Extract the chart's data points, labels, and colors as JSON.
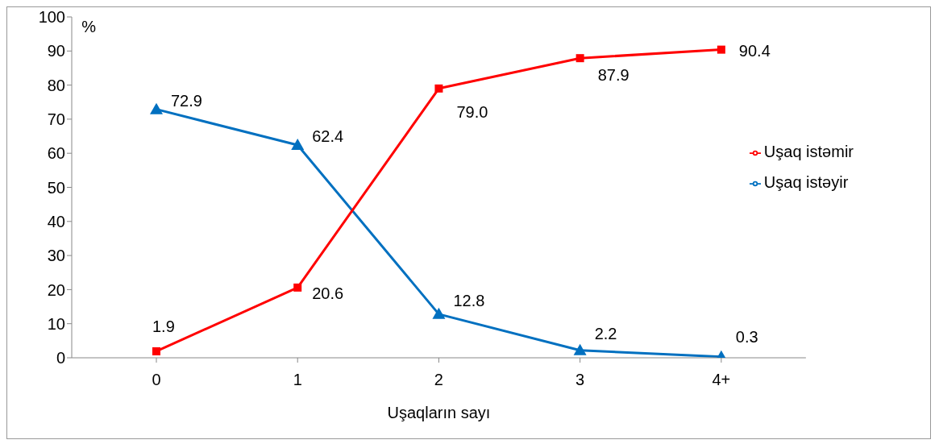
{
  "chart_data": {
    "type": "line",
    "xlabel": "Uşaqların sayı",
    "ylabel": "%",
    "categories": [
      "0",
      "1",
      "2",
      "3",
      "4+"
    ],
    "series": [
      {
        "name": "Uşaq istəyir",
        "color": "#0070c0",
        "marker": "triangle",
        "values": [
          72.9,
          62.4,
          12.8,
          2.2,
          0.3
        ],
        "value_labels": [
          "72.9",
          "62.4",
          "12.8",
          "2.2",
          "0.3"
        ]
      },
      {
        "name": "Uşaq istəmir",
        "color": "#ff0000",
        "marker": "square",
        "values": [
          1.9,
          20.6,
          79.0,
          87.9,
          90.4
        ],
        "value_labels": [
          "1.9",
          "20.6",
          "79.0",
          "87.9",
          "90.4"
        ]
      }
    ],
    "ylim": [
      0,
      100
    ],
    "yticks": [
      0,
      10,
      20,
      30,
      40,
      50,
      60,
      70,
      80,
      90,
      100
    ],
    "legend": "right",
    "line_style": "solid"
  }
}
